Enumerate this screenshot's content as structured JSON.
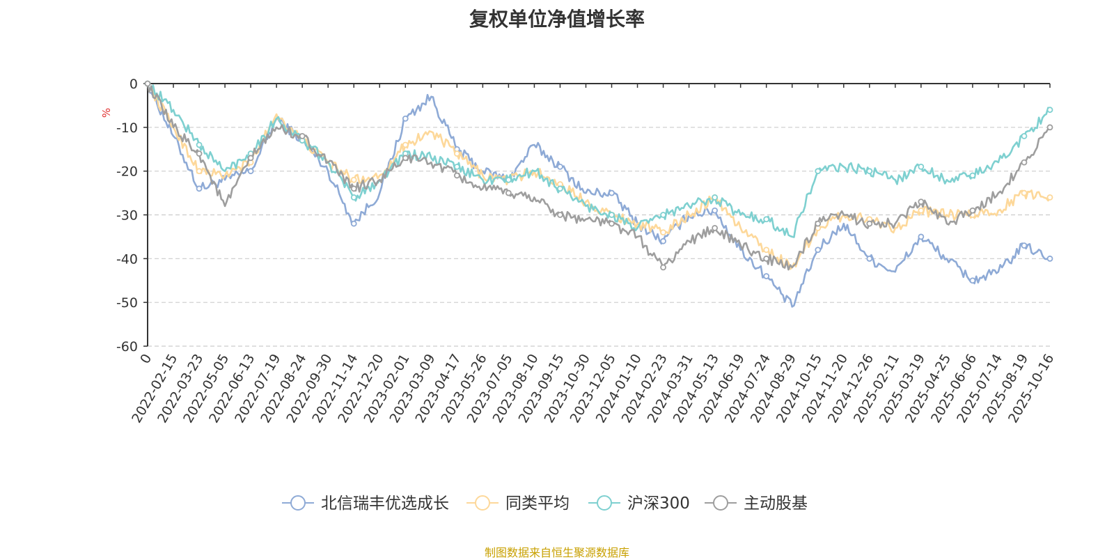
{
  "footer": "制图数据来自恒生聚源数据库",
  "chart_data": {
    "type": "line",
    "title": "复权单位净值增长率",
    "ylabel": "%",
    "ylim": [
      -60,
      0
    ],
    "yticks": [
      "0",
      "-10",
      "-20",
      "-30",
      "-40",
      "-50",
      "-60"
    ],
    "grid": true,
    "legend_position": "bottom-center",
    "x": [
      "0",
      "2022-02-15",
      "2022-03-23",
      "2022-05-05",
      "2022-06-13",
      "2022-07-19",
      "2022-08-24",
      "2022-09-30",
      "2022-11-14",
      "2022-12-20",
      "2023-02-01",
      "2023-03-09",
      "2023-04-17",
      "2023-05-26",
      "2023-07-05",
      "2023-08-10",
      "2023-09-15",
      "2023-10-30",
      "2023-12-05",
      "2024-01-10",
      "2024-02-23",
      "2024-03-31",
      "2024-05-13",
      "2024-06-19",
      "2024-07-24",
      "2024-08-29",
      "2024-10-15",
      "2024-11-20",
      "2024-12-26",
      "2025-02-11",
      "2025-03-19",
      "2025-04-25",
      "2025-06-06",
      "2025-07-14",
      "2025-08-19",
      "2025-10-16"
    ],
    "series": [
      {
        "name": "北信瑞丰优选成长",
        "color": "#8eaad6",
        "values": [
          0,
          -12,
          -24,
          -22,
          -20,
          -8,
          -13,
          -20,
          -32,
          -25,
          -8,
          -3,
          -15,
          -20,
          -22,
          -14,
          -19,
          -25,
          -25,
          -32,
          -36,
          -30,
          -29,
          -38,
          -44,
          -51,
          -38,
          -32,
          -40,
          -43,
          -35,
          -40,
          -45,
          -43,
          -37,
          -40
        ]
      },
      {
        "name": "同类平均",
        "color": "#fdd89a",
        "values": [
          0,
          -10,
          -20,
          -21,
          -18,
          -7,
          -13,
          -18,
          -22,
          -21,
          -14,
          -11,
          -16,
          -21,
          -22,
          -20,
          -23,
          -27,
          -30,
          -32,
          -34,
          -30,
          -26,
          -33,
          -38,
          -42,
          -33,
          -30,
          -31,
          -33,
          -29,
          -30,
          -30,
          -29,
          -25,
          -26
        ]
      },
      {
        "name": "沪深300",
        "color": "#7ed0d0",
        "values": [
          0,
          -6,
          -14,
          -20,
          -16,
          -8,
          -13,
          -18,
          -26,
          -22,
          -16,
          -17,
          -19,
          -22,
          -22,
          -20,
          -24,
          -28,
          -30,
          -33,
          -30,
          -28,
          -26,
          -30,
          -31,
          -35,
          -20,
          -19,
          -20,
          -22,
          -19,
          -22,
          -21,
          -18,
          -12,
          -6
        ]
      },
      {
        "name": "主动股基",
        "color": "#9e9e9e",
        "values": [
          0,
          -10,
          -16,
          -28,
          -17,
          -10,
          -12,
          -18,
          -24,
          -22,
          -17,
          -18,
          -21,
          -24,
          -25,
          -26,
          -30,
          -31,
          -32,
          -35,
          -42,
          -36,
          -33,
          -37,
          -40,
          -42,
          -32,
          -30,
          -32,
          -32,
          -27,
          -32,
          -29,
          -25,
          -18,
          -10
        ]
      }
    ]
  }
}
